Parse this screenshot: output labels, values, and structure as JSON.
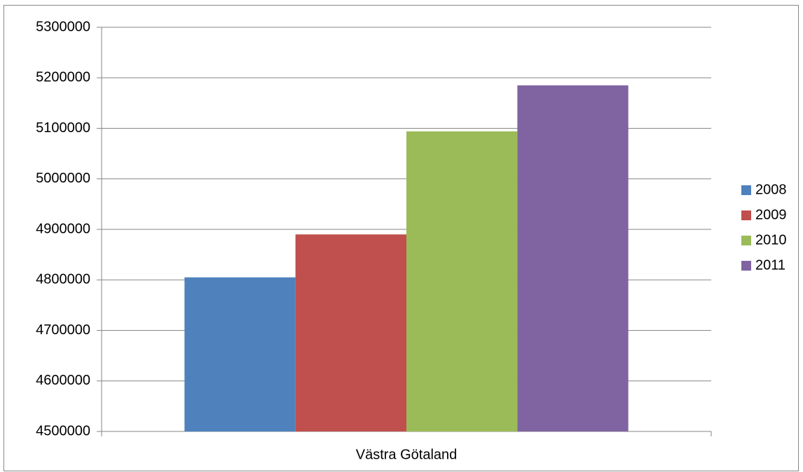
{
  "chart_data": {
    "type": "bar",
    "categories": [
      "Västra Götaland"
    ],
    "series": [
      {
        "name": "2008",
        "color": "#4f81bd",
        "values": [
          4805000
        ]
      },
      {
        "name": "2009",
        "color": "#c0504d",
        "values": [
          4890000
        ]
      },
      {
        "name": "2010",
        "color": "#9bbb59",
        "values": [
          5094000
        ]
      },
      {
        "name": "2011",
        "color": "#8064a2",
        "values": [
          5185000
        ]
      }
    ],
    "ylim": [
      4500000,
      5300000
    ],
    "yticks": [
      4500000,
      4600000,
      4700000,
      4800000,
      4900000,
      5000000,
      5100000,
      5200000,
      5300000
    ],
    "grid": true,
    "legend": "right"
  }
}
